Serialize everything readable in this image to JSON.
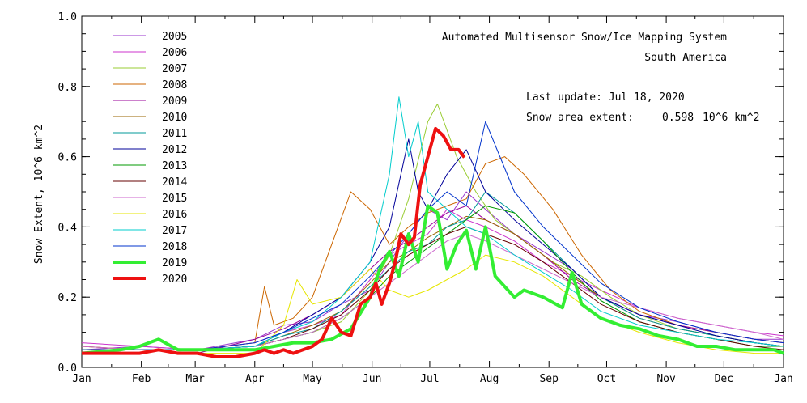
{
  "chart_data": {
    "type": "line",
    "title": "Automated  Multisensor Snow/Ice Mapping System",
    "subtitle": "South America",
    "update_text": "Last update: Jul 18, 2020",
    "extent_label": "Snow area extent:",
    "extent_value": "0.598",
    "extent_unit": "10^6 km^2",
    "ylabel": "Snow Extent, 10^6 km^2",
    "xlabel": "",
    "xlim": [
      0,
      365
    ],
    "ylim": [
      0.0,
      1.0
    ],
    "x_ticks": [
      {
        "label": "Jan",
        "day": 0
      },
      {
        "label": "Feb",
        "day": 31
      },
      {
        "label": "Mar",
        "day": 59
      },
      {
        "label": "Apr",
        "day": 90
      },
      {
        "label": "May",
        "day": 120
      },
      {
        "label": "Jun",
        "day": 151
      },
      {
        "label": "Jul",
        "day": 181
      },
      {
        "label": "Aug",
        "day": 212
      },
      {
        "label": "Sep",
        "day": 243
      },
      {
        "label": "Oct",
        "day": 273
      },
      {
        "label": "Nov",
        "day": 304
      },
      {
        "label": "Dec",
        "day": 334
      },
      {
        "label": "Jan",
        "day": 365
      }
    ],
    "y_ticks": [
      "0.0",
      "0.2",
      "0.4",
      "0.6",
      "0.8",
      "1.0"
    ],
    "grid": false,
    "legend_position": "top-left",
    "series": [
      {
        "name": "2005",
        "color": "#9933cc",
        "width": 1,
        "x": [
          0,
          30,
          60,
          90,
          105,
          120,
          135,
          150,
          160,
          170,
          180,
          190,
          200,
          210,
          225,
          240,
          255,
          270,
          290,
          310,
          330,
          350,
          365
        ],
        "y": [
          0.05,
          0.06,
          0.05,
          0.08,
          0.12,
          0.13,
          0.18,
          0.22,
          0.3,
          0.38,
          0.45,
          0.42,
          0.5,
          0.45,
          0.38,
          0.33,
          0.28,
          0.2,
          0.15,
          0.13,
          0.1,
          0.08,
          0.08
        ]
      },
      {
        "name": "2006",
        "color": "#cc33cc",
        "width": 1,
        "x": [
          0,
          30,
          60,
          90,
          105,
          120,
          135,
          150,
          160,
          170,
          180,
          190,
          200,
          210,
          225,
          240,
          255,
          270,
          290,
          310,
          330,
          350,
          365
        ],
        "y": [
          0.07,
          0.06,
          0.05,
          0.07,
          0.1,
          0.12,
          0.15,
          0.25,
          0.32,
          0.35,
          0.38,
          0.45,
          0.42,
          0.4,
          0.36,
          0.3,
          0.26,
          0.22,
          0.17,
          0.14,
          0.12,
          0.1,
          0.09
        ]
      },
      {
        "name": "2007",
        "color": "#99cc33",
        "width": 1,
        "x": [
          0,
          30,
          60,
          90,
          105,
          120,
          135,
          150,
          160,
          170,
          180,
          185,
          195,
          205,
          215,
          230,
          245,
          260,
          275,
          290,
          310,
          330,
          350,
          365
        ],
        "y": [
          0.06,
          0.05,
          0.05,
          0.06,
          0.08,
          0.1,
          0.13,
          0.22,
          0.32,
          0.48,
          0.7,
          0.75,
          0.6,
          0.5,
          0.42,
          0.36,
          0.3,
          0.26,
          0.2,
          0.15,
          0.11,
          0.09,
          0.07,
          0.06
        ]
      },
      {
        "name": "2008",
        "color": "#cc6600",
        "width": 1,
        "x": [
          0,
          30,
          60,
          90,
          95,
          100,
          110,
          120,
          130,
          140,
          150,
          160,
          170,
          180,
          190,
          200,
          210,
          220,
          230,
          245,
          260,
          275,
          290,
          310,
          330,
          350,
          365
        ],
        "y": [
          0.05,
          0.05,
          0.05,
          0.07,
          0.23,
          0.12,
          0.14,
          0.2,
          0.35,
          0.5,
          0.45,
          0.35,
          0.4,
          0.44,
          0.46,
          0.48,
          0.58,
          0.6,
          0.55,
          0.45,
          0.32,
          0.22,
          0.16,
          0.12,
          0.1,
          0.08,
          0.07
        ]
      },
      {
        "name": "2009",
        "color": "#990099",
        "width": 1,
        "x": [
          0,
          30,
          60,
          90,
          105,
          120,
          135,
          150,
          160,
          170,
          180,
          190,
          200,
          210,
          225,
          240,
          255,
          270,
          290,
          310,
          330,
          350,
          365
        ],
        "y": [
          0.05,
          0.05,
          0.04,
          0.08,
          0.11,
          0.15,
          0.2,
          0.28,
          0.33,
          0.36,
          0.4,
          0.44,
          0.46,
          0.42,
          0.38,
          0.32,
          0.25,
          0.2,
          0.15,
          0.12,
          0.1,
          0.08,
          0.07
        ]
      },
      {
        "name": "2010",
        "color": "#996600",
        "width": 1,
        "x": [
          0,
          30,
          60,
          90,
          105,
          120,
          135,
          150,
          160,
          170,
          180,
          190,
          200,
          210,
          225,
          240,
          255,
          270,
          290,
          310,
          330,
          350,
          365
        ],
        "y": [
          0.06,
          0.05,
          0.05,
          0.06,
          0.09,
          0.12,
          0.16,
          0.24,
          0.3,
          0.33,
          0.37,
          0.4,
          0.43,
          0.42,
          0.38,
          0.32,
          0.26,
          0.2,
          0.14,
          0.11,
          0.09,
          0.07,
          0.06
        ]
      },
      {
        "name": "2011",
        "color": "#009999",
        "width": 1,
        "x": [
          0,
          30,
          60,
          90,
          105,
          120,
          135,
          150,
          160,
          170,
          180,
          190,
          200,
          210,
          225,
          240,
          255,
          270,
          290,
          310,
          330,
          350,
          365
        ],
        "y": [
          0.05,
          0.05,
          0.05,
          0.06,
          0.09,
          0.11,
          0.16,
          0.23,
          0.28,
          0.33,
          0.35,
          0.4,
          0.42,
          0.5,
          0.44,
          0.36,
          0.28,
          0.2,
          0.14,
          0.11,
          0.09,
          0.07,
          0.06
        ]
      },
      {
        "name": "2012",
        "color": "#000099",
        "width": 1,
        "x": [
          0,
          30,
          60,
          90,
          105,
          120,
          135,
          150,
          160,
          170,
          175,
          180,
          190,
          200,
          210,
          225,
          240,
          255,
          270,
          290,
          310,
          330,
          350,
          365
        ],
        "y": [
          0.05,
          0.05,
          0.05,
          0.06,
          0.1,
          0.15,
          0.2,
          0.3,
          0.4,
          0.65,
          0.5,
          0.45,
          0.55,
          0.62,
          0.5,
          0.42,
          0.35,
          0.28,
          0.2,
          0.15,
          0.12,
          0.09,
          0.07,
          0.06
        ]
      },
      {
        "name": "2013",
        "color": "#009900",
        "width": 1,
        "x": [
          0,
          30,
          60,
          90,
          105,
          120,
          135,
          150,
          160,
          170,
          180,
          190,
          200,
          210,
          225,
          240,
          255,
          270,
          290,
          310,
          330,
          350,
          365
        ],
        "y": [
          0.05,
          0.05,
          0.05,
          0.06,
          0.08,
          0.1,
          0.14,
          0.2,
          0.26,
          0.3,
          0.34,
          0.38,
          0.42,
          0.46,
          0.44,
          0.36,
          0.27,
          0.19,
          0.13,
          0.1,
          0.08,
          0.06,
          0.06
        ]
      },
      {
        "name": "2014",
        "color": "#660000",
        "width": 1,
        "x": [
          0,
          30,
          60,
          90,
          105,
          120,
          135,
          150,
          160,
          170,
          180,
          190,
          200,
          210,
          225,
          240,
          255,
          270,
          290,
          310,
          330,
          350,
          365
        ],
        "y": [
          0.05,
          0.05,
          0.05,
          0.06,
          0.08,
          0.11,
          0.15,
          0.22,
          0.28,
          0.32,
          0.35,
          0.38,
          0.4,
          0.38,
          0.35,
          0.3,
          0.24,
          0.18,
          0.13,
          0.1,
          0.08,
          0.06,
          0.05
        ]
      },
      {
        "name": "2015",
        "color": "#cc66cc",
        "width": 1,
        "x": [
          0,
          30,
          60,
          90,
          105,
          120,
          135,
          150,
          160,
          170,
          180,
          190,
          200,
          210,
          225,
          240,
          255,
          270,
          290,
          310,
          330,
          350,
          365
        ],
        "y": [
          0.06,
          0.05,
          0.05,
          0.06,
          0.08,
          0.1,
          0.14,
          0.2,
          0.24,
          0.28,
          0.32,
          0.36,
          0.38,
          0.36,
          0.32,
          0.28,
          0.24,
          0.2,
          0.17,
          0.14,
          0.12,
          0.1,
          0.08
        ]
      },
      {
        "name": "2016",
        "color": "#e6e600",
        "width": 1,
        "x": [
          0,
          30,
          60,
          90,
          105,
          112,
          120,
          135,
          150,
          160,
          170,
          180,
          190,
          200,
          210,
          225,
          240,
          255,
          270,
          290,
          310,
          330,
          350,
          365
        ],
        "y": [
          0.05,
          0.05,
          0.04,
          0.04,
          0.12,
          0.25,
          0.18,
          0.2,
          0.28,
          0.22,
          0.2,
          0.22,
          0.25,
          0.28,
          0.32,
          0.3,
          0.26,
          0.2,
          0.14,
          0.1,
          0.07,
          0.05,
          0.04,
          0.04
        ]
      },
      {
        "name": "2017",
        "color": "#00cccc",
        "width": 1,
        "x": [
          0,
          30,
          60,
          90,
          105,
          120,
          135,
          150,
          160,
          165,
          170,
          175,
          180,
          190,
          200,
          210,
          225,
          240,
          255,
          270,
          290,
          310,
          330,
          350,
          365
        ],
        "y": [
          0.05,
          0.05,
          0.05,
          0.06,
          0.1,
          0.13,
          0.2,
          0.3,
          0.55,
          0.77,
          0.6,
          0.7,
          0.5,
          0.45,
          0.4,
          0.38,
          0.32,
          0.27,
          0.22,
          0.16,
          0.12,
          0.1,
          0.08,
          0.07,
          0.06
        ]
      },
      {
        "name": "2018",
        "color": "#0033cc",
        "width": 1,
        "x": [
          0,
          30,
          60,
          90,
          105,
          120,
          135,
          150,
          160,
          170,
          180,
          190,
          200,
          210,
          225,
          240,
          255,
          270,
          290,
          310,
          330,
          350,
          365
        ],
        "y": [
          0.05,
          0.05,
          0.05,
          0.07,
          0.1,
          0.14,
          0.18,
          0.26,
          0.32,
          0.38,
          0.45,
          0.5,
          0.46,
          0.7,
          0.5,
          0.4,
          0.32,
          0.24,
          0.17,
          0.13,
          0.1,
          0.08,
          0.07
        ]
      },
      {
        "name": "2019",
        "color": "#33ee33",
        "width": 4,
        "x": [
          0,
          20,
          30,
          40,
          50,
          60,
          80,
          90,
          100,
          110,
          120,
          130,
          140,
          150,
          155,
          160,
          165,
          170,
          175,
          180,
          185,
          190,
          195,
          200,
          205,
          210,
          215,
          220,
          225,
          230,
          240,
          250,
          255,
          260,
          270,
          280,
          290,
          300,
          310,
          320,
          330,
          340,
          350,
          360,
          365
        ],
        "y": [
          0.04,
          0.05,
          0.06,
          0.08,
          0.05,
          0.05,
          0.05,
          0.05,
          0.06,
          0.07,
          0.07,
          0.08,
          0.11,
          0.2,
          0.28,
          0.33,
          0.26,
          0.38,
          0.3,
          0.46,
          0.44,
          0.28,
          0.35,
          0.39,
          0.28,
          0.4,
          0.26,
          0.23,
          0.2,
          0.22,
          0.2,
          0.17,
          0.27,
          0.18,
          0.14,
          0.12,
          0.11,
          0.09,
          0.08,
          0.06,
          0.06,
          0.05,
          0.05,
          0.05,
          0.04
        ]
      },
      {
        "name": "2020",
        "color": "#ee1111",
        "width": 4,
        "x": [
          0,
          10,
          20,
          30,
          40,
          50,
          60,
          70,
          80,
          90,
          95,
          100,
          105,
          110,
          115,
          120,
          125,
          130,
          135,
          140,
          145,
          150,
          153,
          156,
          160,
          163,
          166,
          170,
          173,
          176,
          180,
          184,
          188,
          192,
          196,
          199
        ],
        "y": [
          0.04,
          0.04,
          0.04,
          0.04,
          0.05,
          0.04,
          0.04,
          0.03,
          0.03,
          0.04,
          0.05,
          0.04,
          0.05,
          0.04,
          0.05,
          0.06,
          0.08,
          0.14,
          0.1,
          0.09,
          0.18,
          0.2,
          0.24,
          0.18,
          0.24,
          0.3,
          0.38,
          0.35,
          0.37,
          0.52,
          0.6,
          0.68,
          0.66,
          0.62,
          0.62,
          0.598
        ]
      }
    ]
  }
}
